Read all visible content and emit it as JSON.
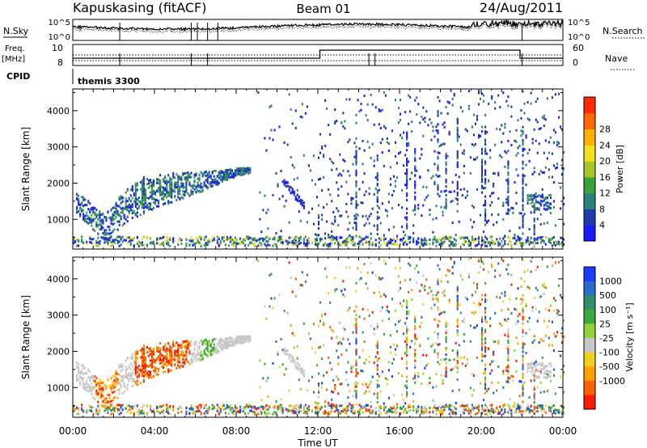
{
  "header": {
    "station": "Kapuskasing (fitACF)",
    "beam": "Beam 01",
    "date": "24/Aug/2011"
  },
  "top_panels": {
    "nsky_label": "N.Sky",
    "nsearch_label": "N.Search",
    "freq_label_line1": "Freq.",
    "freq_label_line2": "[MHz]",
    "nave_label": "Nave",
    "cpid_label": "CPID",
    "cpid_value": "themis 3300",
    "noise_ticks_left": [
      "10^5",
      "10^0"
    ],
    "noise_ticks_right": [
      "10^5",
      "10^0"
    ],
    "freq_ticks": [
      "10",
      "8"
    ],
    "nave_ticks": [
      "60",
      "0"
    ]
  },
  "x_axis": {
    "label": "Time UT",
    "ticks": [
      "00:00",
      "04:00",
      "08:00",
      "12:00",
      "16:00",
      "20:00",
      "00:00"
    ]
  },
  "chart_data": [
    {
      "type": "heatmap",
      "quantity": "Power",
      "ylabel": "Slant Range [km]",
      "xlabel": "Time UT",
      "yticks": [
        1000,
        2000,
        3000,
        4000
      ],
      "ylim": [
        180,
        4600
      ],
      "xlim_hours": [
        0,
        24
      ],
      "colorbar": {
        "label": "Power [dB]",
        "ticks": [
          "4",
          "8",
          "12",
          "16",
          "20",
          "24",
          "28"
        ],
        "colors": [
          "#1a1aff",
          "#1e3ca8",
          "#2f7f7f",
          "#3aa33a",
          "#a8c62a",
          "#f0e020",
          "#ffb000",
          "#ff6a00",
          "#ff2a00"
        ]
      },
      "echo_band": [
        {
          "t": 0.1,
          "r": 1450
        },
        {
          "t": 0.6,
          "r": 1250
        },
        {
          "t": 1.2,
          "r": 900
        },
        {
          "t": 1.6,
          "r": 750
        },
        {
          "t": 2.0,
          "r": 1050
        },
        {
          "t": 2.6,
          "r": 1350
        },
        {
          "t": 3.3,
          "r": 1600
        },
        {
          "t": 4.0,
          "r": 1750
        },
        {
          "t": 5.0,
          "r": 1900
        },
        {
          "t": 6.0,
          "r": 2000
        },
        {
          "t": 7.0,
          "r": 2150
        },
        {
          "t": 8.0,
          "r": 2300
        },
        {
          "t": 8.7,
          "r": 2350
        }
      ]
    },
    {
      "type": "heatmap",
      "quantity": "Velocity",
      "ylabel": "Slant Range [km]",
      "xlabel": "Time UT",
      "yticks": [
        1000,
        2000,
        3000,
        4000
      ],
      "ylim": [
        180,
        4600
      ],
      "xlim_hours": [
        0,
        24
      ],
      "colorbar": {
        "label": "Velocity [m s⁻¹]",
        "ticks": [
          "1000",
          "500",
          "100",
          "25",
          "-25",
          "-100",
          "-500",
          "-1000"
        ],
        "colors": [
          "#1a3cff",
          "#2a6bd0",
          "#2f8f6a",
          "#3aa83a",
          "#8fd43a",
          "#c8c8c8",
          "#f0d020",
          "#ffa000",
          "#ff6000",
          "#ff1a00"
        ]
      }
    }
  ]
}
